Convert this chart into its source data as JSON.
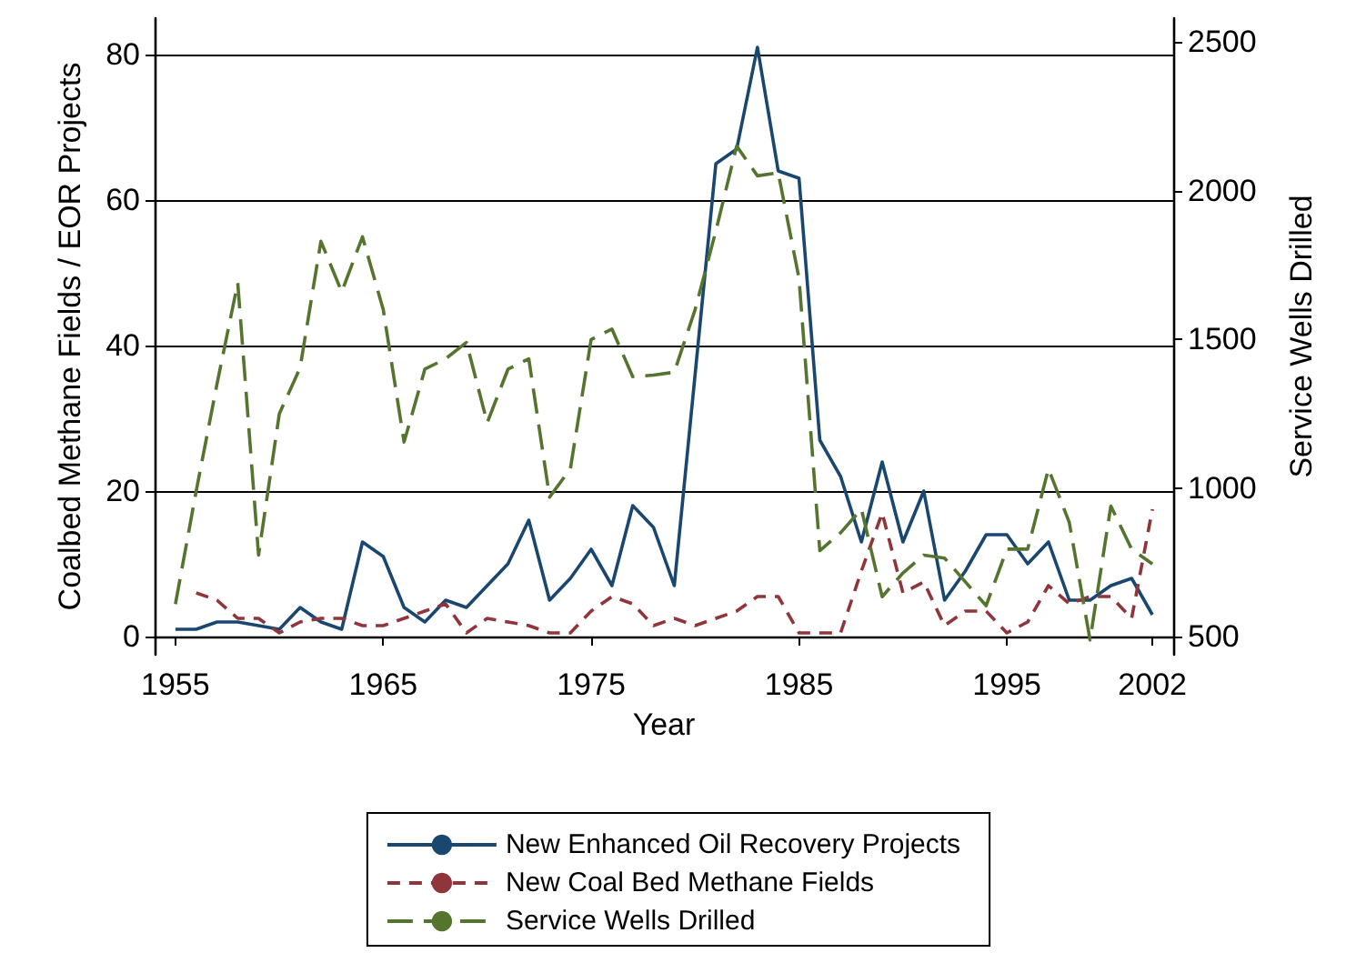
{
  "chart_data": {
    "type": "line",
    "xlabel": "Year",
    "ylabel": "Coalbed Methane Fields / EOR Projects",
    "y2label": "Service Wells Drilled",
    "x": [
      1955,
      1956,
      1957,
      1958,
      1959,
      1960,
      1961,
      1962,
      1963,
      1964,
      1965,
      1966,
      1967,
      1968,
      1969,
      1970,
      1971,
      1972,
      1973,
      1974,
      1975,
      1976,
      1977,
      1978,
      1979,
      1980,
      1981,
      1982,
      1983,
      1984,
      1985,
      1986,
      1987,
      1988,
      1989,
      1990,
      1991,
      1992,
      1993,
      1994,
      1995,
      1996,
      1997,
      1998,
      1999,
      2000,
      2001,
      2002
    ],
    "series": [
      {
        "name": "New Enhanced Oil Recovery Projects",
        "color": "#1a476f",
        "line_style": "solid",
        "values": [
          1,
          1,
          2,
          2,
          1.5,
          1,
          4,
          2,
          1,
          13,
          11,
          4,
          2,
          5,
          4,
          7,
          10,
          16,
          5,
          8,
          12,
          7,
          18,
          15,
          7,
          36,
          65,
          67,
          81,
          64,
          63,
          27,
          22,
          13,
          24,
          13,
          20,
          5,
          9,
          14,
          14,
          10,
          13,
          5,
          5,
          7,
          8,
          3
        ]
      },
      {
        "name": "New Coal Bed Methane Fields",
        "color": "#90353b",
        "line_style": "dashed",
        "values": [
          null,
          6,
          5,
          2.5,
          2.5,
          0.5,
          2,
          2.5,
          2.5,
          1.5,
          1.5,
          2.5,
          3.5,
          4.5,
          0.5,
          2.5,
          2,
          1.5,
          0.5,
          0.5,
          3.5,
          5.5,
          4.5,
          1.5,
          2.5,
          1.5,
          2.5,
          3.5,
          5.5,
          5.5,
          0.5,
          0.5,
          0.5,
          9,
          17,
          6,
          7.5,
          1.5,
          3.5,
          3.5,
          0.5,
          2,
          7,
          4.5,
          5.5,
          5.5,
          2.5,
          17.5
        ]
      },
      {
        "name": "Service Wells Drilled",
        "color": "#55752f",
        "line_style": "longdash",
        "axis": "y2",
        "values": [
          610,
          990,
          1350,
          1690,
          775,
          1250,
          1405,
          1830,
          1660,
          1845,
          1600,
          1155,
          1400,
          1435,
          1490,
          1220,
          1400,
          1435,
          970,
          1065,
          1500,
          1535,
          1375,
          1380,
          1390,
          1600,
          1865,
          2150,
          2050,
          2060,
          1705,
          790,
          850,
          930,
          635,
          715,
          775,
          765,
          685,
          605,
          795,
          795,
          1065,
          885,
          490,
          940,
          795,
          745
        ]
      }
    ],
    "xlim": [
      1954,
      2003
    ],
    "xticks": [
      1955,
      1965,
      1975,
      1985,
      1995,
      2002
    ],
    "ylim": [
      -2.5,
      85
    ],
    "yticks": [
      0,
      20,
      40,
      60,
      80
    ],
    "y2lim": [
      440,
      2580
    ],
    "y2ticks": [
      500,
      1000,
      1500,
      2000,
      2500
    ],
    "grid": "y",
    "legend": "bottom",
    "marker": "none"
  }
}
